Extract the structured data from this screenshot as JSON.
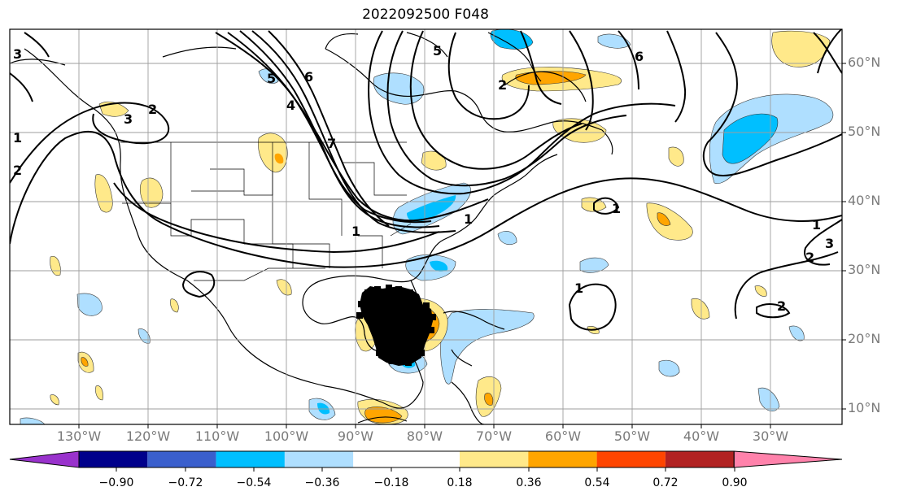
{
  "title": "2022092500 F048",
  "lat_labels": [
    "60°N",
    "50°N",
    "40°N",
    "30°N",
    "20°N",
    "10°N"
  ],
  "lon_labels": [
    "130°W",
    "120°W",
    "110°W",
    "100°W",
    "90°W",
    "80°W",
    "70°W",
    "60°W",
    "50°W",
    "40°W",
    "30°W"
  ],
  "contour_labels": [
    "3",
    "2",
    "1",
    "2",
    "3",
    "4",
    "5",
    "6",
    "7",
    "5",
    "6",
    "2",
    "1",
    "1",
    "1",
    "1",
    "3",
    "2",
    "2",
    "1"
  ],
  "colorbar": {
    "ticks": [
      "−0.90",
      "−0.72",
      "−0.54",
      "−0.36",
      "−0.18",
      "0.18",
      "0.36",
      "0.54",
      "0.72",
      "0.90"
    ],
    "colors": [
      "#9932cc",
      "#00008b",
      "#3a5fcd",
      "#00bfff",
      "#afdfff",
      "#ffffff",
      "#ffe98a",
      "#ffa500",
      "#ff4500",
      "#b22222",
      "#ff82ab"
    ]
  },
  "colors": {
    "frame": "#000000",
    "grid": "#9e9e9e",
    "label": "#7a7a7a"
  }
}
